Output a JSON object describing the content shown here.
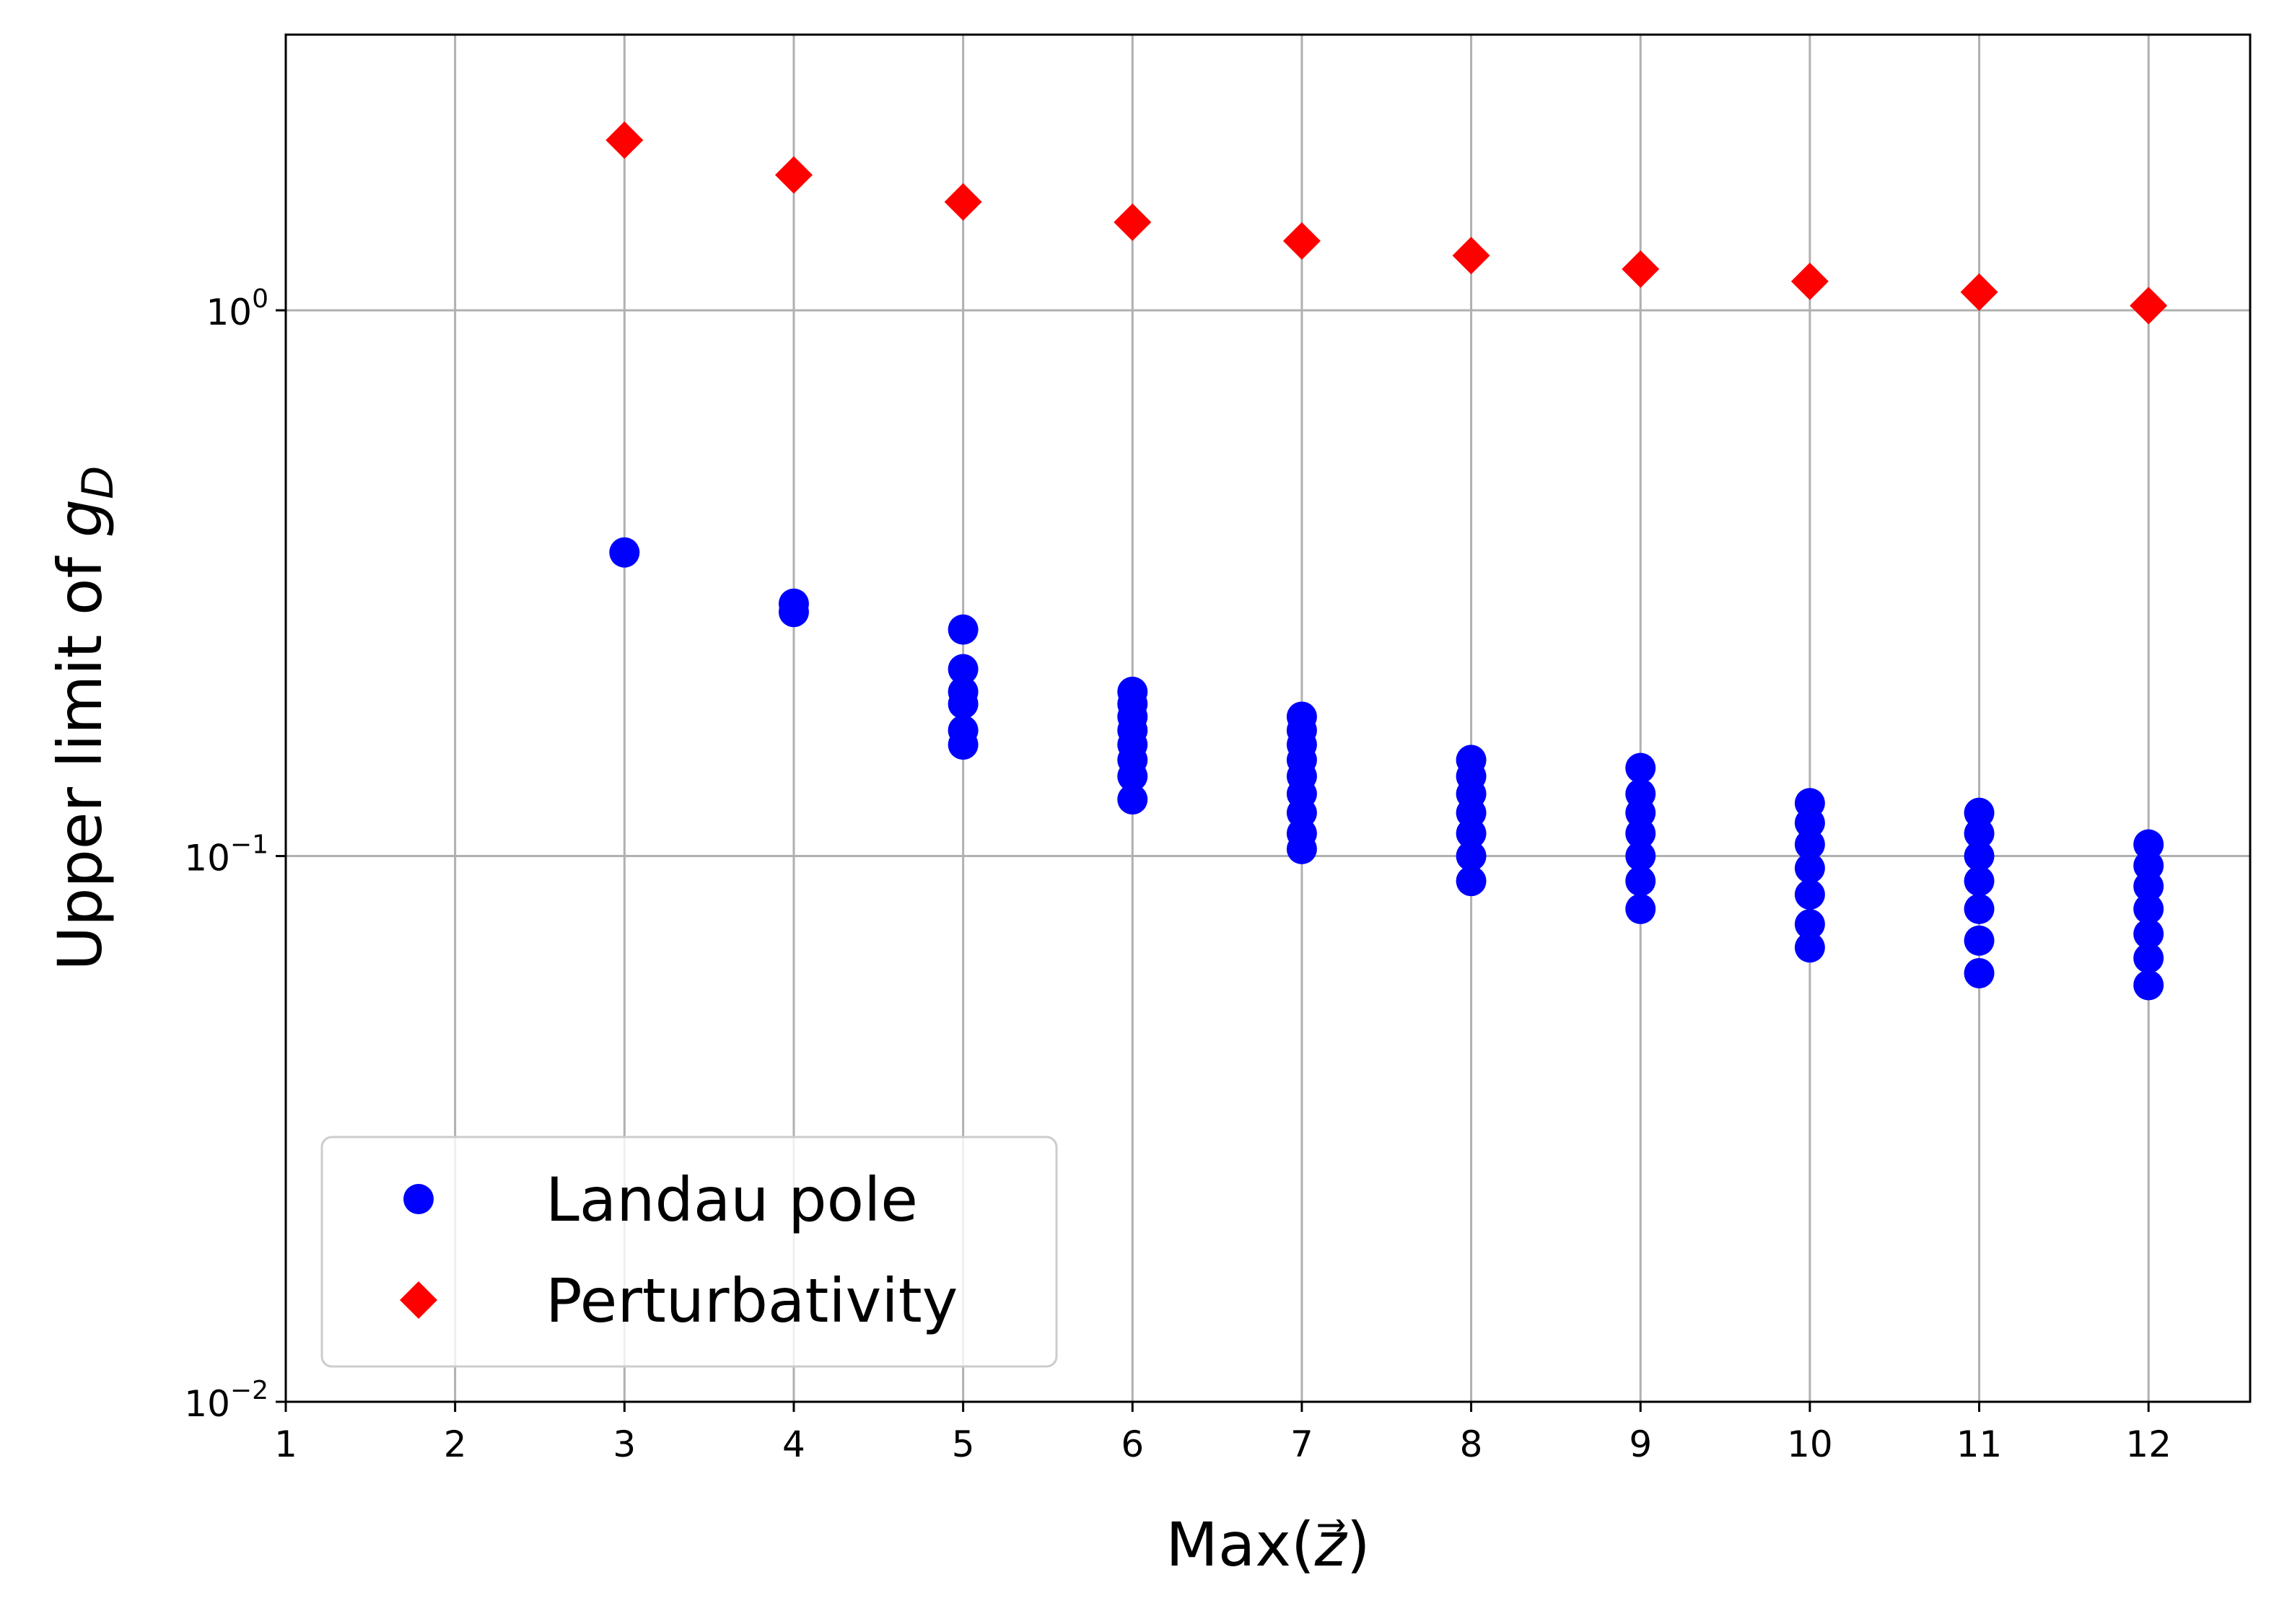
{
  "chart_data": {
    "type": "scatter",
    "title": "",
    "xlabel": {
      "pre": "Max(",
      "var": "z",
      "arrow": "⃗",
      "post": ")"
    },
    "ylabel": {
      "pre": "Upper limit of ",
      "var": "g",
      "sub": "D"
    },
    "xlim": [
      1,
      12.6
    ],
    "ylim": [
      0.01,
      3.2
    ],
    "yscale": "log",
    "grid": true,
    "x_ticks": [
      {
        "value": 1,
        "label": "1"
      },
      {
        "value": 2,
        "label": "2"
      },
      {
        "value": 3,
        "label": "3"
      },
      {
        "value": 4,
        "label": "4"
      },
      {
        "value": 5,
        "label": "5"
      },
      {
        "value": 6,
        "label": "6"
      },
      {
        "value": 7,
        "label": "7"
      },
      {
        "value": 8,
        "label": "8"
      },
      {
        "value": 9,
        "label": "9"
      },
      {
        "value": 10,
        "label": "10"
      },
      {
        "value": 11,
        "label": "11"
      },
      {
        "value": 12,
        "label": "12"
      }
    ],
    "y_ticks": [
      {
        "value": 0.01,
        "base": "10",
        "exp": "−2"
      },
      {
        "value": 0.1,
        "base": "10",
        "exp": "−1"
      },
      {
        "value": 1,
        "base": "10",
        "exp": "0"
      }
    ],
    "legend_position": "lower-left",
    "series": [
      {
        "name": "Landau pole",
        "marker": "circle",
        "color": "#0000ff",
        "points": [
          [
            3,
            0.36
          ],
          [
            4,
            0.28
          ],
          [
            4,
            0.29
          ],
          [
            5,
            0.16
          ],
          [
            5,
            0.17
          ],
          [
            5,
            0.19
          ],
          [
            5,
            0.2
          ],
          [
            5,
            0.22
          ],
          [
            5,
            0.26
          ],
          [
            6,
            0.127
          ],
          [
            6,
            0.14
          ],
          [
            6,
            0.15
          ],
          [
            6,
            0.16
          ],
          [
            6,
            0.17
          ],
          [
            6,
            0.18
          ],
          [
            6,
            0.19
          ],
          [
            6,
            0.2
          ],
          [
            7,
            0.103
          ],
          [
            7,
            0.11
          ],
          [
            7,
            0.12
          ],
          [
            7,
            0.13
          ],
          [
            7,
            0.14
          ],
          [
            7,
            0.15
          ],
          [
            7,
            0.16
          ],
          [
            7,
            0.17
          ],
          [
            7,
            0.18
          ],
          [
            8,
            0.09
          ],
          [
            8,
            0.1
          ],
          [
            8,
            0.11
          ],
          [
            8,
            0.12
          ],
          [
            8,
            0.13
          ],
          [
            8,
            0.14
          ],
          [
            8,
            0.15
          ],
          [
            9,
            0.08
          ],
          [
            9,
            0.09
          ],
          [
            9,
            0.1
          ],
          [
            9,
            0.11
          ],
          [
            9,
            0.12
          ],
          [
            9,
            0.13
          ],
          [
            9,
            0.145
          ],
          [
            10,
            0.068
          ],
          [
            10,
            0.075
          ],
          [
            10,
            0.085
          ],
          [
            10,
            0.095
          ],
          [
            10,
            0.105
          ],
          [
            10,
            0.115
          ],
          [
            10,
            0.125
          ],
          [
            11,
            0.061
          ],
          [
            11,
            0.07
          ],
          [
            11,
            0.08
          ],
          [
            11,
            0.09
          ],
          [
            11,
            0.1
          ],
          [
            11,
            0.11
          ],
          [
            11,
            0.12
          ],
          [
            12,
            0.058
          ],
          [
            12,
            0.065
          ],
          [
            12,
            0.072
          ],
          [
            12,
            0.08
          ],
          [
            12,
            0.088
          ],
          [
            12,
            0.096
          ],
          [
            12,
            0.105
          ]
        ]
      },
      {
        "name": "Perturbativity",
        "marker": "diamond",
        "color": "#ff0000",
        "points": [
          [
            3,
            2.05
          ],
          [
            4,
            1.77
          ],
          [
            5,
            1.58
          ],
          [
            6,
            1.45
          ],
          [
            7,
            1.34
          ],
          [
            8,
            1.26
          ],
          [
            9,
            1.19
          ],
          [
            10,
            1.13
          ],
          [
            11,
            1.08
          ],
          [
            12,
            1.02
          ]
        ]
      }
    ]
  }
}
